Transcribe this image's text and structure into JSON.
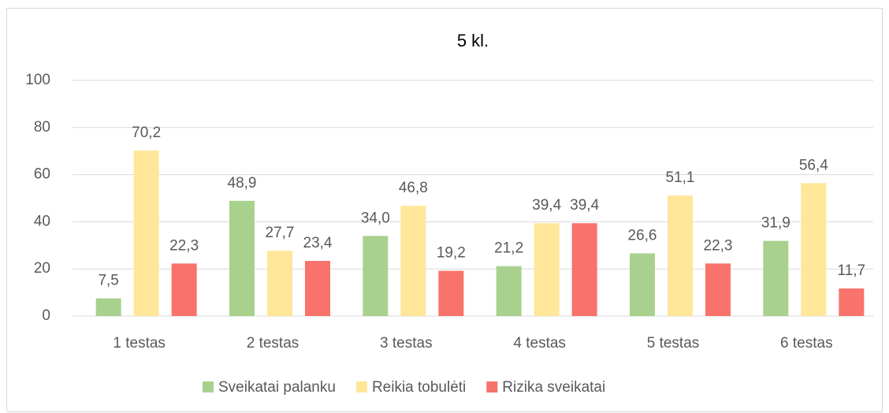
{
  "chart_data": {
    "type": "bar",
    "title": "5 kl.",
    "categories": [
      "1 testas",
      "2 testas",
      "3 testas",
      "4 testas",
      "5 testas",
      "6 testas"
    ],
    "series": [
      {
        "name": "Sveikatai palanku",
        "color": "#a9d18e",
        "values": [
          7.5,
          48.9,
          34.0,
          21.2,
          26.6,
          31.9
        ],
        "value_labels": [
          "7,5",
          "48,9",
          "34,0",
          "21,2",
          "26,6",
          "31,9"
        ]
      },
      {
        "name": "Reikia tobulėti",
        "color": "#ffe699",
        "values": [
          70.2,
          27.7,
          46.8,
          39.4,
          51.1,
          56.4
        ],
        "value_labels": [
          "70,2",
          "27,7",
          "46,8",
          "39,4",
          "51,1",
          "56,4"
        ]
      },
      {
        "name": "Rizika sveikatai",
        "color": "#f8736b",
        "values": [
          22.3,
          23.4,
          19.2,
          39.4,
          22.3,
          11.7
        ],
        "value_labels": [
          "22,3",
          "23,4",
          "19,2",
          "39,4",
          "22,3",
          "11,7"
        ]
      }
    ],
    "ylim": [
      0,
      100
    ],
    "yticks": [
      0,
      20,
      40,
      60,
      80,
      100
    ],
    "grid": true,
    "legend": "bottom"
  }
}
